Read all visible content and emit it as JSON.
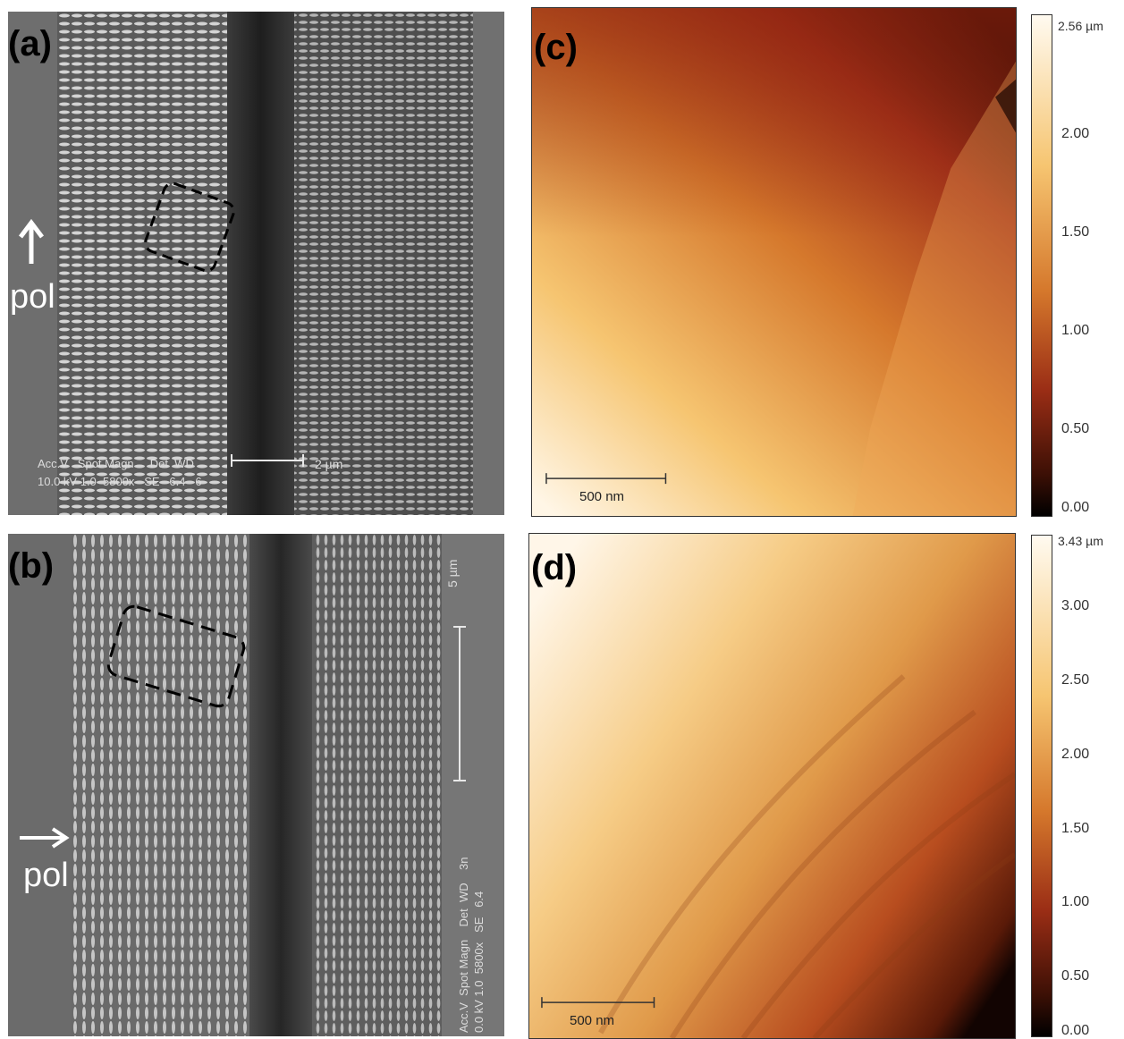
{
  "panels": {
    "a": {
      "label": "(a)",
      "pol": "pol",
      "scalebar": "2 µm",
      "info_line1": "Acc.V   Spot Magn     Det  WD",
      "info_line2": "10.0 kV 1.0  5800x   SE   6.4   6"
    },
    "b": {
      "label": "(b)",
      "pol": "pol",
      "scalebar": "5 µm",
      "info": "Acc.V  Spot Magn    Det  WD    3n\n0.0 kV 1.0  5800x   SE   6.4"
    },
    "c": {
      "label": "(c)",
      "scalebar": "500 nm",
      "colorbar_ticks": [
        "2.00",
        "1.50",
        "1.00",
        "0.50",
        "0.00"
      ],
      "colorbar_max": "2.56 µm"
    },
    "d": {
      "label": "(d)",
      "scalebar": "500 nm",
      "colorbar_ticks": [
        "3.00",
        "2.50",
        "2.00",
        "1.50",
        "1.00",
        "0.50",
        "0.00"
      ],
      "colorbar_max": "3.43 µm"
    }
  },
  "colors": {
    "afm_dark": "#000000",
    "afm_mid": "#b8451c",
    "afm_light": "#f5c06a",
    "afm_white": "#fff8ec",
    "sem_background": "#6b6b6b"
  }
}
